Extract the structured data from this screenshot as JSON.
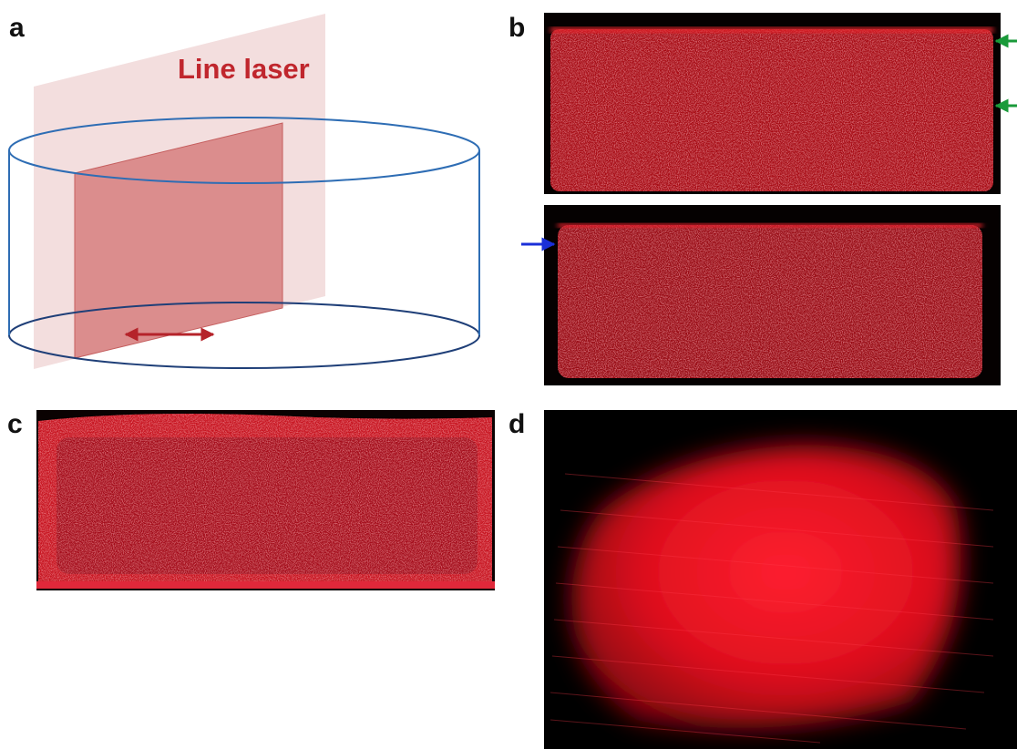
{
  "panels": [
    {
      "label": "a",
      "annotation": "Line laser"
    },
    {
      "label": "b"
    },
    {
      "label": "c"
    },
    {
      "label": "d"
    }
  ]
}
